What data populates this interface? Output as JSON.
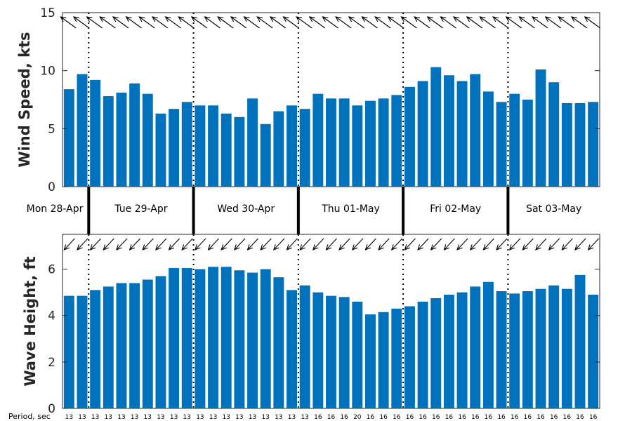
{
  "chart_data": [
    {
      "type": "bar",
      "ylabel": "Wind Speed, kts",
      "ylim": [
        0,
        15
      ],
      "yticks": [
        0,
        5,
        10,
        15
      ],
      "color": "#0072BD",
      "values": [
        8.4,
        9.7,
        9.2,
        7.8,
        8.1,
        8.9,
        8.0,
        6.3,
        6.7,
        7.3,
        7.0,
        7.0,
        6.3,
        6.0,
        7.6,
        5.4,
        6.5,
        7.0,
        6.7,
        8.0,
        7.6,
        7.6,
        7.0,
        7.4,
        7.6,
        7.9,
        8.6,
        9.1,
        10.3,
        9.6,
        9.1,
        9.7,
        8.2,
        7.3,
        8.0,
        7.5,
        10.1,
        9.0,
        7.2,
        7.2,
        7.3
      ],
      "wind_direction_arrows": "pointing up-left (from the northwest quadrant), one per bar"
    },
    {
      "type": "bar",
      "ylabel": "Wave Height, ft",
      "ylim": [
        0,
        7.5
      ],
      "yticks": [
        0,
        2,
        4,
        6
      ],
      "color": "#0072BD",
      "values": [
        4.85,
        4.85,
        5.1,
        5.25,
        5.4,
        5.4,
        5.55,
        5.7,
        6.05,
        6.05,
        6.0,
        6.1,
        6.1,
        5.95,
        5.85,
        6.0,
        5.65,
        5.1,
        5.3,
        5.0,
        4.85,
        4.8,
        4.6,
        4.05,
        4.15,
        4.3,
        4.4,
        4.6,
        4.75,
        4.9,
        5.0,
        5.25,
        5.45,
        5.05,
        4.95,
        5.05,
        5.15,
        5.3,
        5.15,
        5.75,
        4.9
      ],
      "wave_direction_arrows": "pointing down-left (toward the southwest), one per bar"
    }
  ],
  "days": [
    "Mon 28-Apr",
    "Tue 29-Apr",
    "Wed 30-Apr",
    "Thu 01-May",
    "Fri 02-May",
    "Sat 03-May"
  ],
  "period_title": "Period, sec",
  "periods": [
    "13",
    "13",
    "13",
    "13",
    "13",
    "13",
    "13",
    "13",
    "13",
    "13",
    "13",
    "13",
    "13",
    "13",
    "13",
    "13",
    "13",
    "13",
    "13",
    "16",
    "16",
    "16",
    "20",
    "16",
    "16",
    "16",
    "16",
    "16",
    "16",
    "16",
    "16",
    "16",
    "16",
    "16",
    "16",
    "16",
    "16",
    "16",
    "16",
    "16",
    "16"
  ]
}
